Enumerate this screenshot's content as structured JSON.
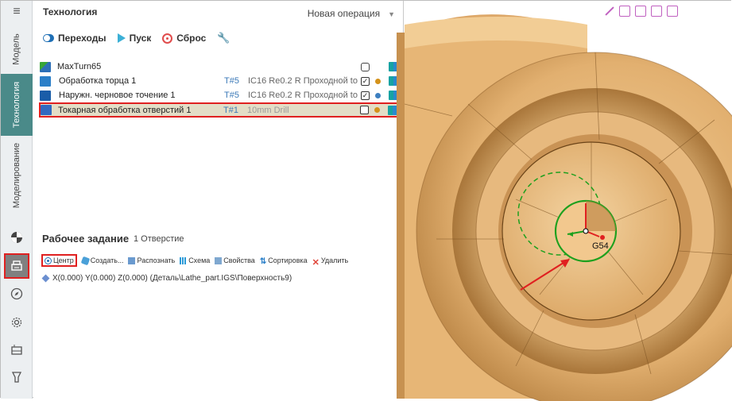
{
  "sidebar": {
    "tabs": [
      {
        "label": "Модель"
      },
      {
        "label": "Технология",
        "active": true
      },
      {
        "label": "Моделирование"
      }
    ],
    "icons": [
      "menu-icon",
      "pie-icon",
      "printer-icon",
      "compass-icon",
      "gear-icon",
      "machine-icon",
      "tool-holder-icon"
    ]
  },
  "panel": {
    "title": "Технология",
    "new_operation": "Новая операция",
    "toolbar": {
      "transitions": "Переходы",
      "start": "Пуск",
      "reset": "Сброс"
    },
    "tree": {
      "root": {
        "name": "MaxTurn65"
      },
      "rows": [
        {
          "name": "Обработка торца 1",
          "tool": "T#5",
          "desc": "IC16 Re0.2 R Проходной to",
          "checked": true,
          "dot_color": "#d4921a"
        },
        {
          "name": "Наружн. черновое точение 1",
          "tool": "T#5",
          "desc": "IC16 Re0.2 R Проходной to",
          "checked": true,
          "dot_color": "#3d7fc0"
        },
        {
          "name": "Токарная обработка отверстий 1",
          "tool": "T#1",
          "desc": "10mm Drill",
          "checked": false,
          "dot_color": "#d4921a",
          "selected": true
        }
      ]
    },
    "work_assignment": {
      "title": "Рабочее задание",
      "count": "1 Отверстие",
      "toolbar": {
        "center": "Центр",
        "create": "Создать...",
        "detect": "Распознать",
        "scheme": "Схема",
        "properties": "Свойства",
        "sort": "Сортировка",
        "delete": "Удалить"
      },
      "hole": "X(0.000) Y(0.000) Z(0.000) (Деталь\\Lathe_part.IGS\\Поверхность9)"
    }
  },
  "viewport": {
    "origin_label": "G54",
    "colors": {
      "part": "#e9c08a",
      "part_dark": "#b98444",
      "circle": "#1ea01e",
      "arrow": "#e02020"
    }
  }
}
